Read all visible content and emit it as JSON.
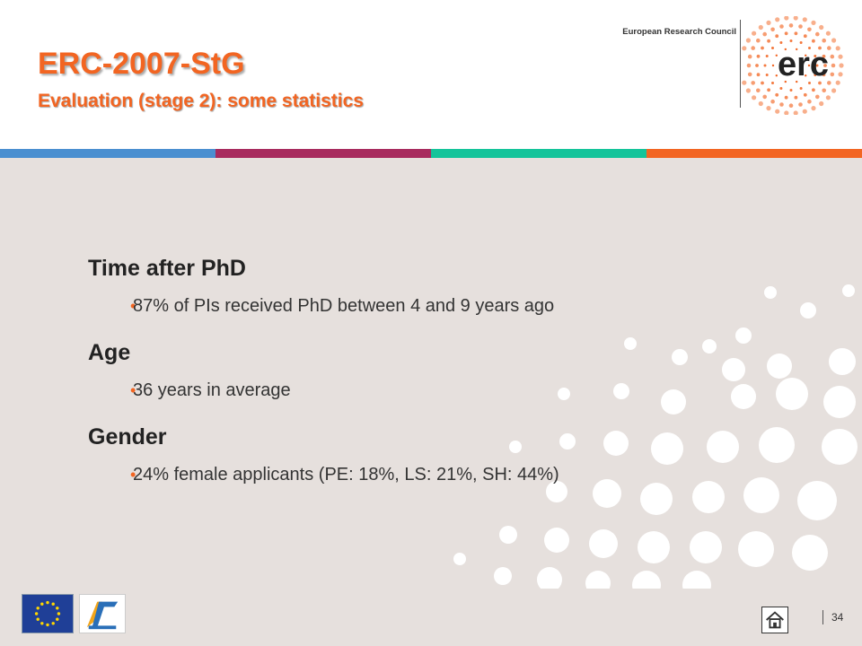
{
  "header": {
    "title": "ERC-2007-StG",
    "subtitle": "Evaluation (stage 2): some statistics",
    "org_name": "European Research Council",
    "logo_text": "erc"
  },
  "colors": {
    "accent": "#f26522",
    "stripes": [
      "#4a8fd0",
      "#a82b5e",
      "#14c49a",
      "#f26522"
    ],
    "background": "#e6e0dd"
  },
  "sections": [
    {
      "heading": "Time after PhD",
      "bullets": [
        "87% of PIs received PhD between 4 and 9 years ago"
      ]
    },
    {
      "heading": "Age",
      "bullets": [
        "36 years in average"
      ]
    },
    {
      "heading": "Gender",
      "bullets": [
        "24% female applicants (PE: 18%, LS: 21%, SH: 44%)"
      ]
    }
  ],
  "footer": {
    "page_number": "34",
    "icons": [
      "eu-flag-icon",
      "fp7-ideas-logo",
      "home-icon"
    ]
  }
}
